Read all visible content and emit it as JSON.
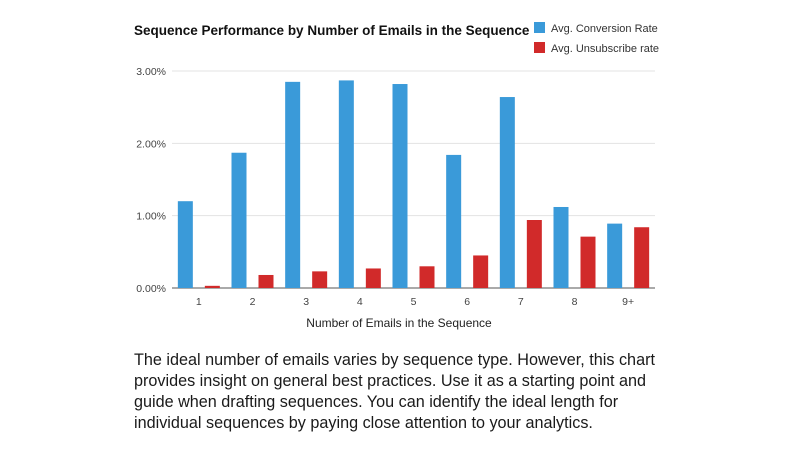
{
  "chart_data": {
    "type": "bar",
    "title": "Sequence Performance by Number of Emails in the Sequence",
    "xlabel": "Number of Emails in the Sequence",
    "ylabel": "",
    "categories": [
      "1",
      "2",
      "3",
      "4",
      "5",
      "6",
      "7",
      "8",
      "9+"
    ],
    "series": [
      {
        "name": "Avg. Conversion Rate",
        "color": "#3a9ad9",
        "values": [
          1.2,
          1.87,
          2.85,
          2.87,
          2.82,
          1.84,
          2.64,
          1.12,
          0.89
        ]
      },
      {
        "name": "Avg. Unsubscribe rate",
        "color": "#d12a2a",
        "values": [
          0.03,
          0.18,
          0.23,
          0.27,
          0.3,
          0.45,
          0.94,
          0.71,
          0.84
        ]
      }
    ],
    "ylim": [
      0,
      3
    ],
    "yticks": [
      0,
      1,
      2,
      3
    ],
    "ytick_labels": [
      "0.00%",
      "1.00%",
      "2.00%",
      "3.00%"
    ],
    "grid": true,
    "legend_position": "top-right"
  },
  "caption": "The ideal number of emails varies by sequence type. However, this chart provides insight on general best practices. Use it as a starting point and guide when drafting sequences. You can identify the ideal length for individual sequences by paying close attention to your analytics."
}
